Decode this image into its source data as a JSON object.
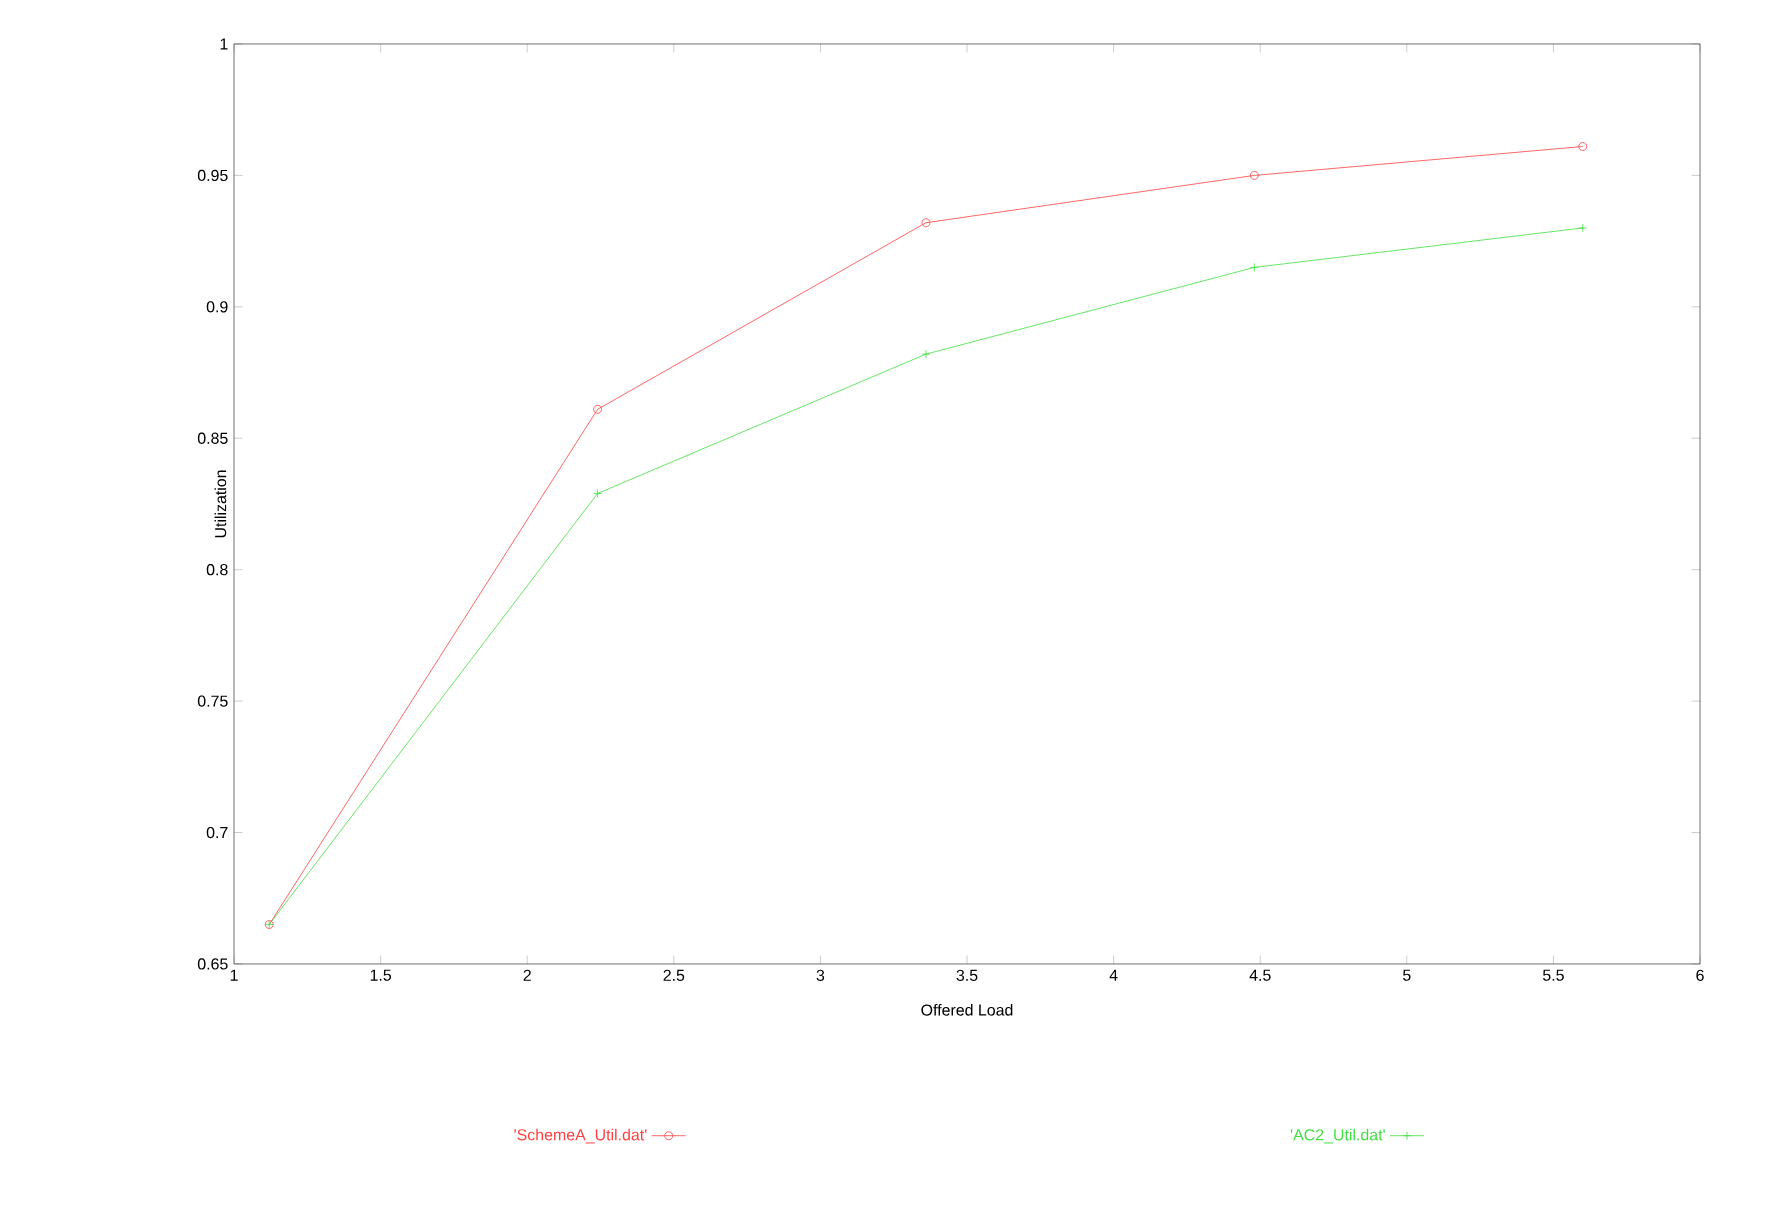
{
  "chart_data": {
    "type": "line",
    "xlabel": "Offered Load",
    "ylabel": "Utilization",
    "x": [
      1.12,
      2.24,
      3.36,
      4.48,
      5.6
    ],
    "series": [
      {
        "name": "'SchemeA_Util.dat'",
        "color": "#ff4040",
        "marker": "circle",
        "values": [
          0.665,
          0.861,
          0.932,
          0.95,
          0.961
        ]
      },
      {
        "name": "'AC2_Util.dat'",
        "color": "#40e040",
        "marker": "cross",
        "values": [
          0.665,
          0.829,
          0.882,
          0.915,
          0.93
        ]
      }
    ],
    "xlim": [
      1,
      6
    ],
    "ylim": [
      0.65,
      1
    ],
    "xticks": [
      1,
      1.5,
      2,
      2.5,
      3,
      3.5,
      4,
      4.5,
      5,
      5.5,
      6
    ],
    "yticks": [
      0.65,
      0.7,
      0.75,
      0.8,
      0.85,
      0.9,
      0.95,
      1
    ],
    "grid": false,
    "legend": "bottom",
    "line_style": "solid"
  }
}
